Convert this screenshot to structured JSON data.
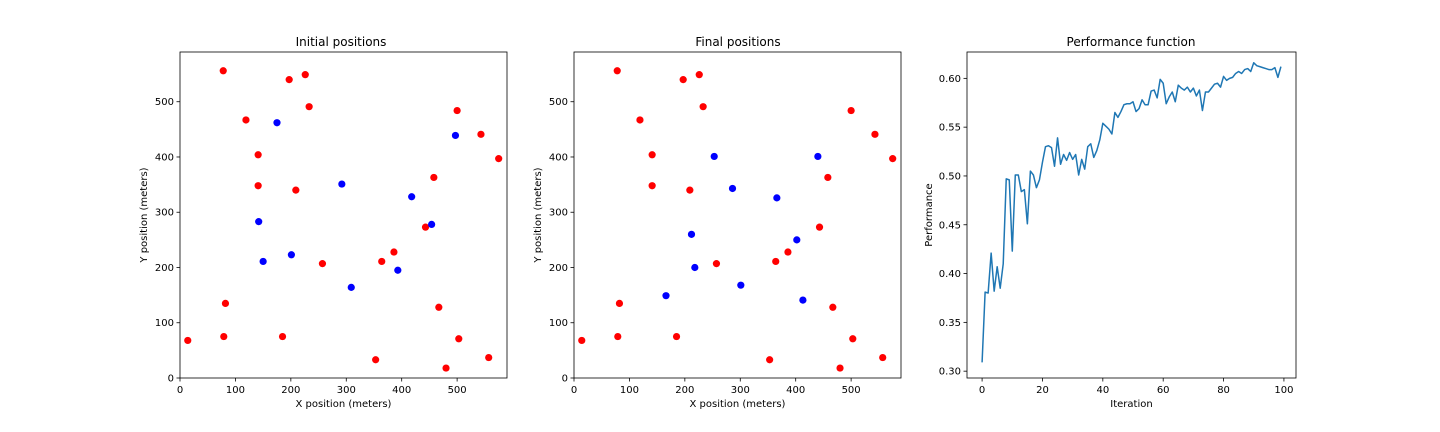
{
  "chart_data": [
    {
      "type": "scatter",
      "title": "Initial positions",
      "xlabel": "X position (meters)",
      "ylabel": "Y position (meters)",
      "xlim": [
        0,
        590
      ],
      "ylim": [
        0,
        590
      ],
      "xticks": [
        0,
        100,
        200,
        300,
        400,
        500
      ],
      "yticks": [
        0,
        100,
        200,
        300,
        400,
        500
      ],
      "series": [
        {
          "color": "#ff0000",
          "points": [
            [
              78,
              556
            ],
            [
              197,
              540
            ],
            [
              226,
              549
            ],
            [
              233,
              491
            ],
            [
              119,
              467
            ],
            [
              141,
              404
            ],
            [
              141,
              348
            ],
            [
              209,
              340
            ],
            [
              257,
              207
            ],
            [
              82,
              135
            ],
            [
              79,
              75
            ],
            [
              185,
              75
            ],
            [
              14,
              68
            ],
            [
              353,
              33
            ],
            [
              480,
              18
            ],
            [
              503,
              71
            ],
            [
              467,
              128
            ],
            [
              364,
              211
            ],
            [
              386,
              228
            ],
            [
              443,
              273
            ],
            [
              458,
              363
            ],
            [
              500,
              484
            ],
            [
              543,
              441
            ],
            [
              575,
              397
            ],
            [
              557,
              37
            ]
          ]
        },
        {
          "color": "#0000ff",
          "points": [
            [
              175,
              462
            ],
            [
              142,
              283
            ],
            [
              150,
              211
            ],
            [
              201,
              223
            ],
            [
              292,
              351
            ],
            [
              309,
              164
            ],
            [
              393,
              195
            ],
            [
              418,
              328
            ],
            [
              454,
              278
            ],
            [
              497,
              439
            ]
          ]
        }
      ]
    },
    {
      "type": "scatter",
      "title": "Final positions",
      "xlabel": "X position (meters)",
      "ylabel": "Y position (meters)",
      "xlim": [
        0,
        590
      ],
      "ylim": [
        0,
        590
      ],
      "xticks": [
        0,
        100,
        200,
        300,
        400,
        500
      ],
      "yticks": [
        0,
        100,
        200,
        300,
        400,
        500
      ],
      "series": [
        {
          "color": "#ff0000",
          "points": [
            [
              78,
              556
            ],
            [
              197,
              540
            ],
            [
              226,
              549
            ],
            [
              233,
              491
            ],
            [
              119,
              467
            ],
            [
              141,
              404
            ],
            [
              141,
              348
            ],
            [
              209,
              340
            ],
            [
              257,
              207
            ],
            [
              82,
              135
            ],
            [
              79,
              75
            ],
            [
              185,
              75
            ],
            [
              14,
              68
            ],
            [
              353,
              33
            ],
            [
              480,
              18
            ],
            [
              503,
              71
            ],
            [
              467,
              128
            ],
            [
              364,
              211
            ],
            [
              386,
              228
            ],
            [
              443,
              273
            ],
            [
              458,
              363
            ],
            [
              500,
              484
            ],
            [
              543,
              441
            ],
            [
              575,
              397
            ],
            [
              557,
              37
            ]
          ]
        },
        {
          "color": "#0000ff",
          "points": [
            [
              253,
              401
            ],
            [
              286,
              343
            ],
            [
              366,
              326
            ],
            [
              440,
              401
            ],
            [
              212,
              260
            ],
            [
              402,
              250
            ],
            [
              166,
              149
            ],
            [
              218,
              200
            ],
            [
              301,
              168
            ],
            [
              413,
              141
            ]
          ]
        }
      ]
    },
    {
      "type": "line",
      "title": "Performance function",
      "xlabel": "Iteration",
      "ylabel": "Performance",
      "xlim": [
        -5,
        104
      ],
      "ylim": [
        0.293,
        0.627
      ],
      "xticks": [
        0,
        20,
        40,
        60,
        80,
        100
      ],
      "yticks": [
        0.3,
        0.35,
        0.4,
        0.45,
        0.5,
        0.55,
        0.6
      ],
      "color": "#1f77b4",
      "y": [
        0.309,
        0.381,
        0.38,
        0.421,
        0.382,
        0.407,
        0.385,
        0.41,
        0.497,
        0.496,
        0.423,
        0.501,
        0.501,
        0.484,
        0.486,
        0.451,
        0.505,
        0.501,
        0.488,
        0.496,
        0.514,
        0.53,
        0.531,
        0.529,
        0.51,
        0.539,
        0.512,
        0.522,
        0.516,
        0.524,
        0.517,
        0.522,
        0.501,
        0.517,
        0.507,
        0.53,
        0.533,
        0.519,
        0.526,
        0.537,
        0.554,
        0.551,
        0.548,
        0.543,
        0.565,
        0.56,
        0.566,
        0.573,
        0.574,
        0.574,
        0.576,
        0.566,
        0.569,
        0.578,
        0.573,
        0.573,
        0.587,
        0.588,
        0.58,
        0.599,
        0.595,
        0.574,
        0.581,
        0.586,
        0.576,
        0.593,
        0.59,
        0.588,
        0.591,
        0.586,
        0.59,
        0.582,
        0.588,
        0.567,
        0.586,
        0.586,
        0.59,
        0.594,
        0.595,
        0.591,
        0.602,
        0.598,
        0.6,
        0.601,
        0.605,
        0.607,
        0.605,
        0.609,
        0.61,
        0.607,
        0.616,
        0.613,
        0.612,
        0.611,
        0.61,
        0.609,
        0.609,
        0.611,
        0.601,
        0.612
      ]
    }
  ]
}
